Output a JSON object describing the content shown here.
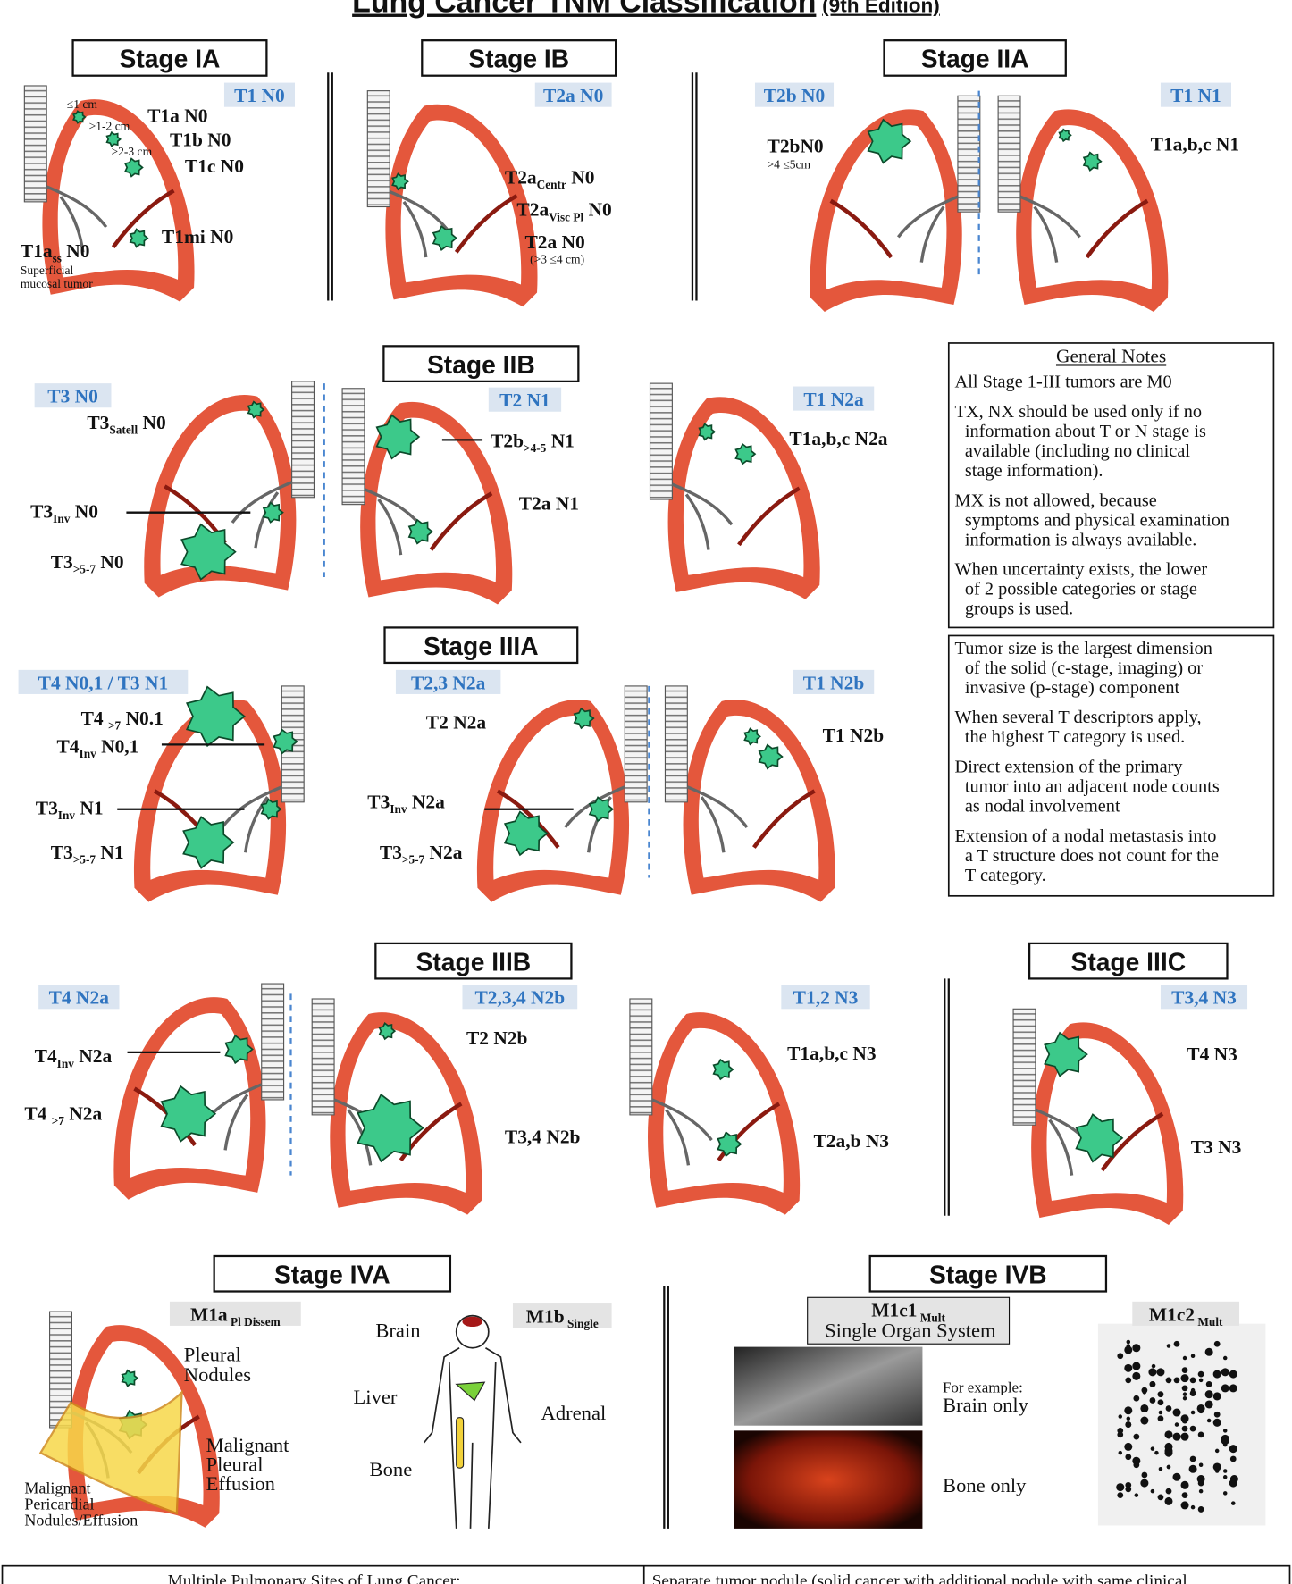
{
  "title": "Lung Cancer TNM Classification",
  "edition": "(9th Edition)",
  "panels": [
    {
      "title": "Stage IA",
      "tags": [
        "T1 N0"
      ],
      "labels": [
        "≤1 cm",
        ">1-2 cm",
        ">2-3 cm",
        "T1a N0",
        "T1b N0",
        "T1c N0",
        "T1mi N0",
        [
          "T1a",
          "ss",
          " N0"
        ],
        "Superficial",
        "mucosal  tumor"
      ]
    },
    {
      "title": "Stage IB",
      "tags": [
        "T2a N0"
      ],
      "labels": [
        [
          "T2a",
          "Centr",
          " N0"
        ],
        [
          "T2a",
          "Visc Pl",
          " N0"
        ],
        "T2a N0",
        "(>3 ≤4 cm)"
      ]
    },
    {
      "title": "Stage IIA",
      "tags": [
        "T2b N0",
        "T1 N1"
      ],
      "labels": [
        "T2bN0",
        ">4 ≤5cm",
        "T1a,b,c N1"
      ]
    },
    {
      "title": "Stage IIB",
      "tags": [
        "T3 N0",
        "T2 N1",
        "T1 N2a"
      ],
      "labels": [
        [
          "T3",
          "Satell",
          " N0"
        ],
        [
          "T3",
          "Inv",
          " N0"
        ],
        [
          "T3",
          ">5-7",
          " N0"
        ],
        [
          "T2b",
          ">4-5",
          " N1"
        ],
        "T2a N1",
        "T1a,b,c N2a"
      ]
    },
    {
      "title": "Stage IIIA",
      "tags": [
        "T4 N0,1  / T3 N1",
        "T2,3 N2a",
        "T1 N2b"
      ],
      "labels": [
        [
          "T4 ",
          ">7",
          " N0.1"
        ],
        [
          "T4",
          "Inv",
          " N0,1"
        ],
        [
          "T3",
          "Inv",
          " N1"
        ],
        [
          "T3",
          ">5-7",
          " N1"
        ],
        "T2 N2a",
        [
          "T3",
          "Inv",
          " N2a"
        ],
        [
          "T3",
          ">5-7",
          " N2a"
        ],
        "T1 N2b"
      ]
    },
    {
      "title": "Stage IIIB",
      "tags": [
        "T4 N2a",
        "T2,3,4 N2b",
        "T1,2 N3"
      ],
      "labels": [
        [
          "T4",
          "Inv",
          " N2a"
        ],
        [
          "T4 ",
          ">7",
          " N2a"
        ],
        "T2 N2b",
        "T3,4 N2b",
        "T1a,b,c N3",
        "T2a,b N3"
      ]
    },
    {
      "title": "Stage IIIC",
      "tags": [
        "T3,4 N3"
      ],
      "labels": [
        "T4 N3",
        "T3 N3"
      ]
    },
    {
      "title": "Stage IVA",
      "tags": [
        [
          "M1a",
          " Pl Dissem"
        ],
        [
          "M1b",
          " Single"
        ]
      ],
      "labels": [
        "Pleural",
        "Nodules",
        "Malignant",
        "Pleural",
        "Effusion",
        "Malignant",
        "Pericardial",
        "Nodules/Effusion",
        "Brain",
        "Liver",
        "Adrenal",
        "Bone"
      ]
    },
    {
      "title": "Stage IVB",
      "tags": [
        [
          "M1c1",
          " Mult"
        ],
        [
          "M1c2",
          " Mult"
        ]
      ],
      "labels": [
        "Single Organ System",
        "For example:",
        "Brain only",
        "Bone only"
      ]
    }
  ],
  "notes": [
    {
      "title": "General Notes",
      "items": [
        [
          "All Stage 1-III tumors are M0"
        ],
        [
          "TX, NX should be used only if no",
          "information about T or N stage is",
          "available (including no clinical",
          "stage information)."
        ],
        [
          "MX is not allowed, because",
          "symptoms and physical examination",
          "information is always available."
        ],
        [
          "When uncertainty exists, the lower",
          "of 2 possible categories or stage",
          "groups is used."
        ]
      ]
    },
    {
      "items": [
        [
          "Tumor size is the largest dimension",
          "of the solid (c-stage, imaging) or",
          "invasive (p-stage) component"
        ],
        [
          "When several T descriptors apply,",
          "the highest T category is used."
        ],
        [
          "Direct extension of the primary",
          "tumor into an adjacent node counts",
          "as nodal involvement"
        ],
        [
          "Extension of a nodal metastasis into",
          "a T structure does not count for the",
          "T category."
        ]
      ]
    }
  ],
  "footer": [
    "Multiple Pulmonary Sites of Lung Cancer:",
    "Separate tumor nodule (solid cancer with additional nodule with same clinical"
  ]
}
